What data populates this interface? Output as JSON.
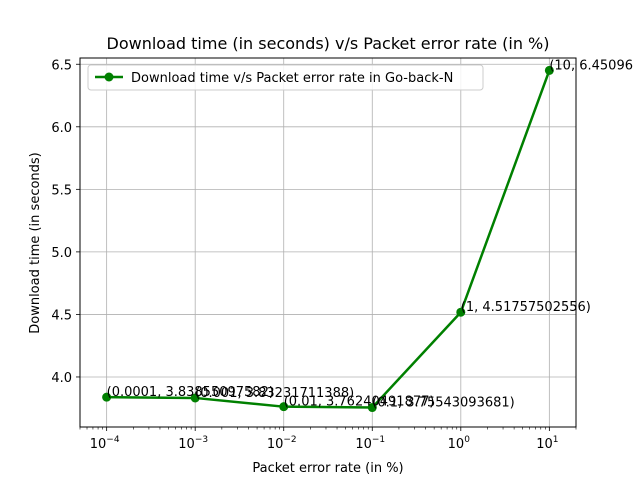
{
  "chart_data": {
    "type": "line",
    "title": "Download time (in seconds) v/s Packet error rate (in %)",
    "xlabel": "Packet error rate (in %)",
    "ylabel": "Download time (in seconds)",
    "x_scale": "log",
    "xlim": [
      5e-05,
      20
    ],
    "ylim": [
      3.6,
      6.55
    ],
    "x_ticks": [
      0.0001,
      0.001,
      0.01,
      0.1,
      1,
      10
    ],
    "x_tick_labels": [
      [
        "10",
        "−4"
      ],
      [
        "10",
        "−3"
      ],
      [
        "10",
        "−2"
      ],
      [
        "10",
        "−1"
      ],
      [
        "10",
        "0"
      ],
      [
        "10",
        "1"
      ]
    ],
    "y_ticks": [
      4.0,
      4.5,
      5.0,
      5.5,
      6.0,
      6.5
    ],
    "y_tick_labels": [
      "4.0",
      "4.5",
      "5.0",
      "5.5",
      "6.0",
      "6.5"
    ],
    "grid": true,
    "legend_position": "top-left",
    "color": "#008000",
    "series": [
      {
        "name": "Download time v/s Packet error rate in Go-back-N",
        "x": [
          0.0001,
          0.001,
          0.01,
          0.1,
          1,
          10
        ],
        "y": [
          3.83855,
          3.8323,
          3.7624,
          3.75543,
          4.51757502556,
          6.45096
        ]
      }
    ],
    "annotations": [
      "(0.0001, 3.83855097582)",
      "(0.001, 3.83231711388)",
      "(0.01, 3.76240491877)",
      "(0.1, 3.75543093681)",
      "(1, 4.51757502556)",
      "(10, 6.45096"
    ]
  }
}
